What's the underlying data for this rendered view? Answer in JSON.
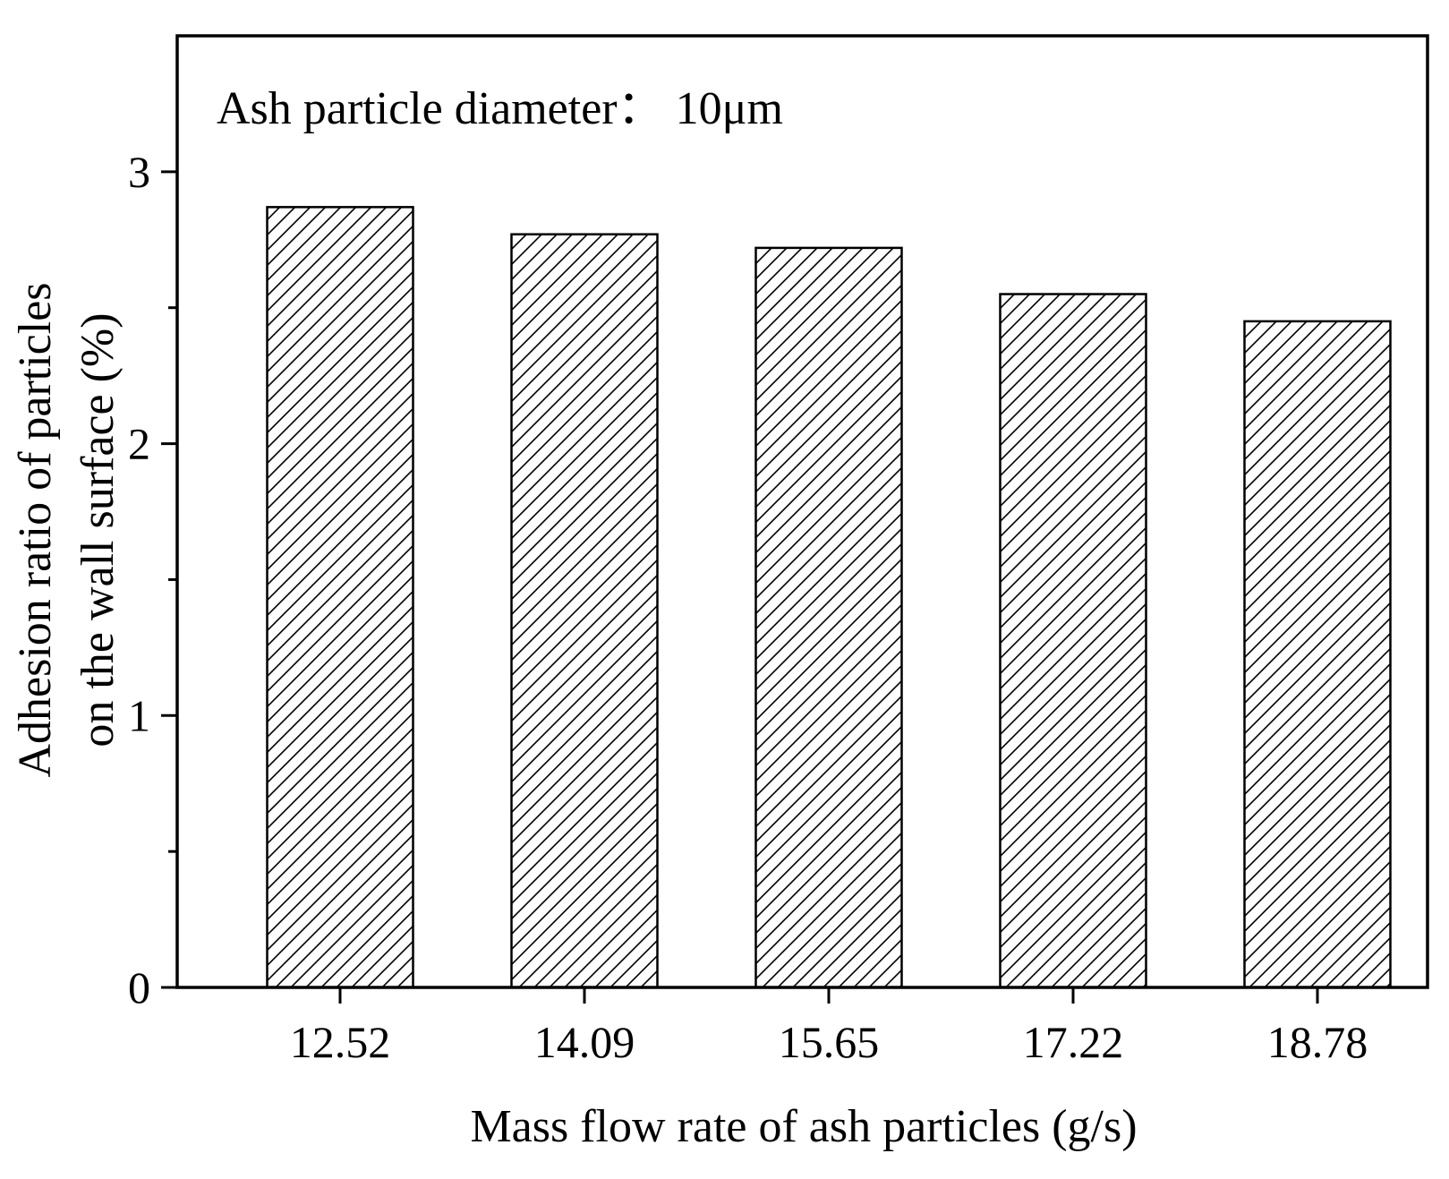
{
  "chart_data": {
    "type": "bar",
    "title": "",
    "annotation": "Ash particle diameter：  10μm",
    "categories": [
      "12.52",
      "14.09",
      "15.65",
      "17.22",
      "18.78"
    ],
    "values": [
      2.87,
      2.77,
      2.72,
      2.55,
      2.45
    ],
    "xlabel": "Mass flow rate of ash particles  (g/s)",
    "ylabel_lines": [
      "Adhesion ratio of particles",
      "on the wall surface (%)"
    ],
    "ylim": [
      0,
      3.5
    ],
    "yticks_major": [
      0,
      1,
      2,
      3
    ],
    "yticks_minor": [
      0.5,
      1.5,
      2.5
    ],
    "grid": false,
    "bar_fill": "hatched diagonal",
    "colors": {
      "bar_edge": "#000000",
      "hatch": "#000000",
      "background": "#ffffff"
    }
  }
}
